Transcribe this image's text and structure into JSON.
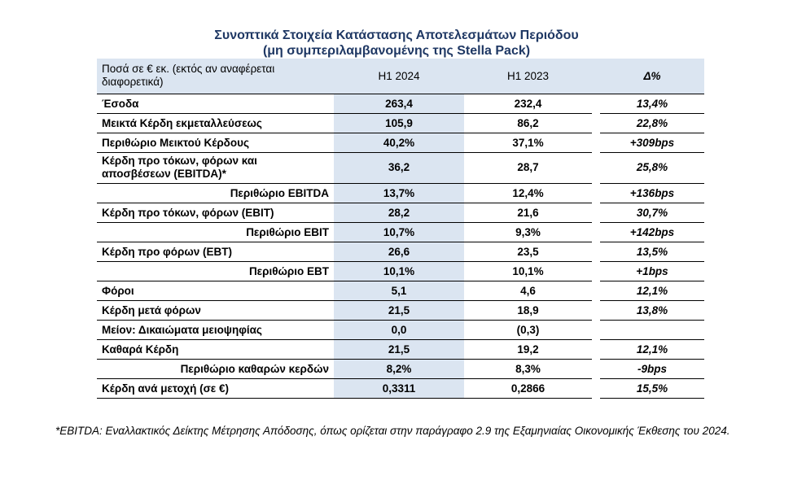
{
  "title_line1": "Συνοπτικά Στοιχεία Κατάστασης Αποτελεσμάτων Περιόδου",
  "title_line2": "(μη συμπεριλαμβανομένης της Stella Pack)",
  "header": {
    "label": "Ποσά σε € εκ. (εκτός αν αναφέρεται διαφορετικά)",
    "col1": "H1 2024",
    "col2": "H1 2023",
    "delta": "Δ%"
  },
  "rows": [
    {
      "label": "Έσοδα",
      "v1": "263,4",
      "v2": "232,4",
      "d": "13,4%"
    },
    {
      "label": "Μεικτά Κέρδη εκμεταλλεύσεως",
      "v1": "105,9",
      "v2": "86,2",
      "d": "22,8%"
    },
    {
      "label": "Περιθώριο Μεικτού Κέρδους",
      "v1": "40,2%",
      "v2": "37,1%",
      "d": "+309bps"
    },
    {
      "label": "Κέρδη προ τόκων, φόρων και αποσβέσεων (EBITDA)*",
      "v1": "36,2",
      "v2": "28,7",
      "d": "25,8%"
    },
    {
      "label": "Περιθώριο EBITDA",
      "v1": "13,7%",
      "v2": "12,4%",
      "d": "+136bps"
    },
    {
      "label": "Κέρδη προ τόκων, φόρων (EBIT)",
      "v1": "28,2",
      "v2": "21,6",
      "d": "30,7%"
    },
    {
      "label": "Περιθώριο EBIT",
      "v1": "10,7%",
      "v2": "9,3%",
      "d": "+142bps"
    },
    {
      "label": "Κέρδη προ φόρων (EBT)",
      "v1": "26,6",
      "v2": "23,5",
      "d": "13,5%"
    },
    {
      "label": "Περιθώριο EBT",
      "v1": "10,1%",
      "v2": "10,1%",
      "d": "+1bps"
    },
    {
      "label": "Φόροι",
      "v1": "5,1",
      "v2": "4,6",
      "d": "12,1%"
    },
    {
      "label": "Κέρδη μετά φόρων",
      "v1": "21,5",
      "v2": "18,9",
      "d": "13,8%"
    },
    {
      "label": "Μείον: Δικαιώματα μειοψηφίας",
      "v1": "0,0",
      "v2": "(0,3)",
      "d": ""
    },
    {
      "label": "Καθαρά Κέρδη",
      "v1": "21,5",
      "v2": "19,2",
      "d": "12,1%"
    },
    {
      "label": "Περιθώριο καθαρών κερδών",
      "v1": "8,2%",
      "v2": "8,3%",
      "d": "-9bps"
    },
    {
      "label": "Κέρδη ανά μετοχή (σε €)",
      "v1": "0,3311",
      "v2": "0,2866",
      "d": "15,5%"
    }
  ],
  "footnote": "*EBITDA: Εναλλακτικός Δείκτης Μέτρησης Απόδοσης, όπως ορίζεται στην παράγραφο 2.9 της Εξαμηνιαίας Οικονομικής Έκθεσης του 2024."
}
